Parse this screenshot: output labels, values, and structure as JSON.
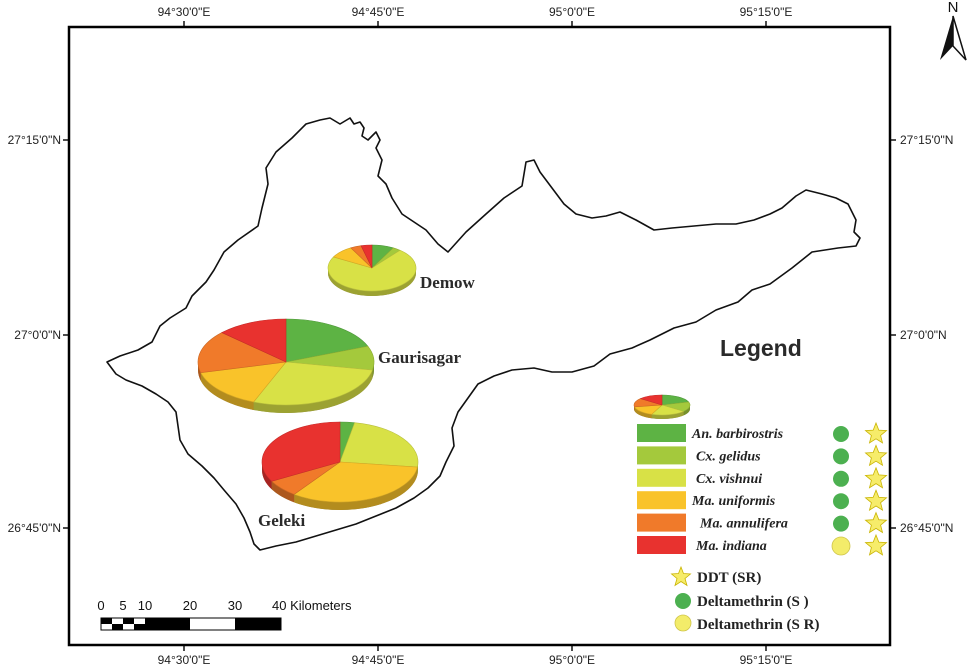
{
  "map": {
    "top_ticks": [
      "94°30'0\"E",
      "94°45'0\"E",
      "95°0'0\"E",
      "95°15'0\"E"
    ],
    "bottom_ticks": [
      "94°30'0\"E",
      "94°45'0\"E",
      "95°0'0\"E",
      "95°15'0\"E"
    ],
    "left_ticks": [
      "27°15'0\"N",
      "27°0'0\"N",
      "26°45'0\"N"
    ],
    "right_ticks": [
      "27°15'0\"N",
      "27°0'0\"N",
      "26°45'0\"N"
    ],
    "north_label": "N",
    "places": {
      "demow": "Demow",
      "gaurisagar": "Gaurisagar",
      "geleki": "Geleki"
    }
  },
  "chart_data": {
    "type": "pie",
    "series_labels": [
      "An. barbirostris",
      "Cx. gelidus",
      "Cx. vishnui",
      "Ma. uniformis",
      "Ma. annulifera",
      "Ma. indiana"
    ],
    "colors": [
      "#5db344",
      "#a4c93c",
      "#d8e146",
      "#f9c32a",
      "#f07a2a",
      "#e8322f"
    ],
    "pies": [
      {
        "name": "Demow",
        "values": [
          8,
          3,
          72,
          9,
          4,
          4
        ]
      },
      {
        "name": "Gaurisagar",
        "values": [
          19,
          9,
          28,
          15,
          16,
          13
        ]
      },
      {
        "name": "Geleki",
        "values": [
          3,
          0,
          24,
          33,
          7,
          33
        ]
      }
    ]
  },
  "legend": {
    "title": "Legend",
    "items": [
      {
        "label": "An. barbirostris",
        "color": "#5db344",
        "status": "S"
      },
      {
        "label": "Cx. gelidus",
        "color": "#a4c93c",
        "status": "S"
      },
      {
        "label": "Cx. vishnui",
        "color": "#d8e146",
        "status": "S"
      },
      {
        "label": "Ma. uniformis",
        "color": "#f9c32a",
        "status": "S"
      },
      {
        "label": "Ma. annulifera",
        "color": "#f07a2a",
        "status": "S"
      },
      {
        "label": "Ma. indiana",
        "color": "#e8322f",
        "status": "SR"
      }
    ],
    "symbols": [
      {
        "label": "DDT (SR)",
        "icon": "star-icon"
      },
      {
        "label": "Deltamethrin (S )",
        "icon": "green-circle-icon"
      },
      {
        "label": "Deltamethrin (S R)",
        "icon": "yellow-circle-icon"
      }
    ],
    "symbol_colors": {
      "star": "#f6ec6a",
      "susceptible": "#4cb050",
      "resistant": "#f3ec6a"
    }
  },
  "scale": {
    "labels": [
      "0",
      "5",
      "10",
      "20",
      "30",
      "40 Kilometers"
    ]
  }
}
